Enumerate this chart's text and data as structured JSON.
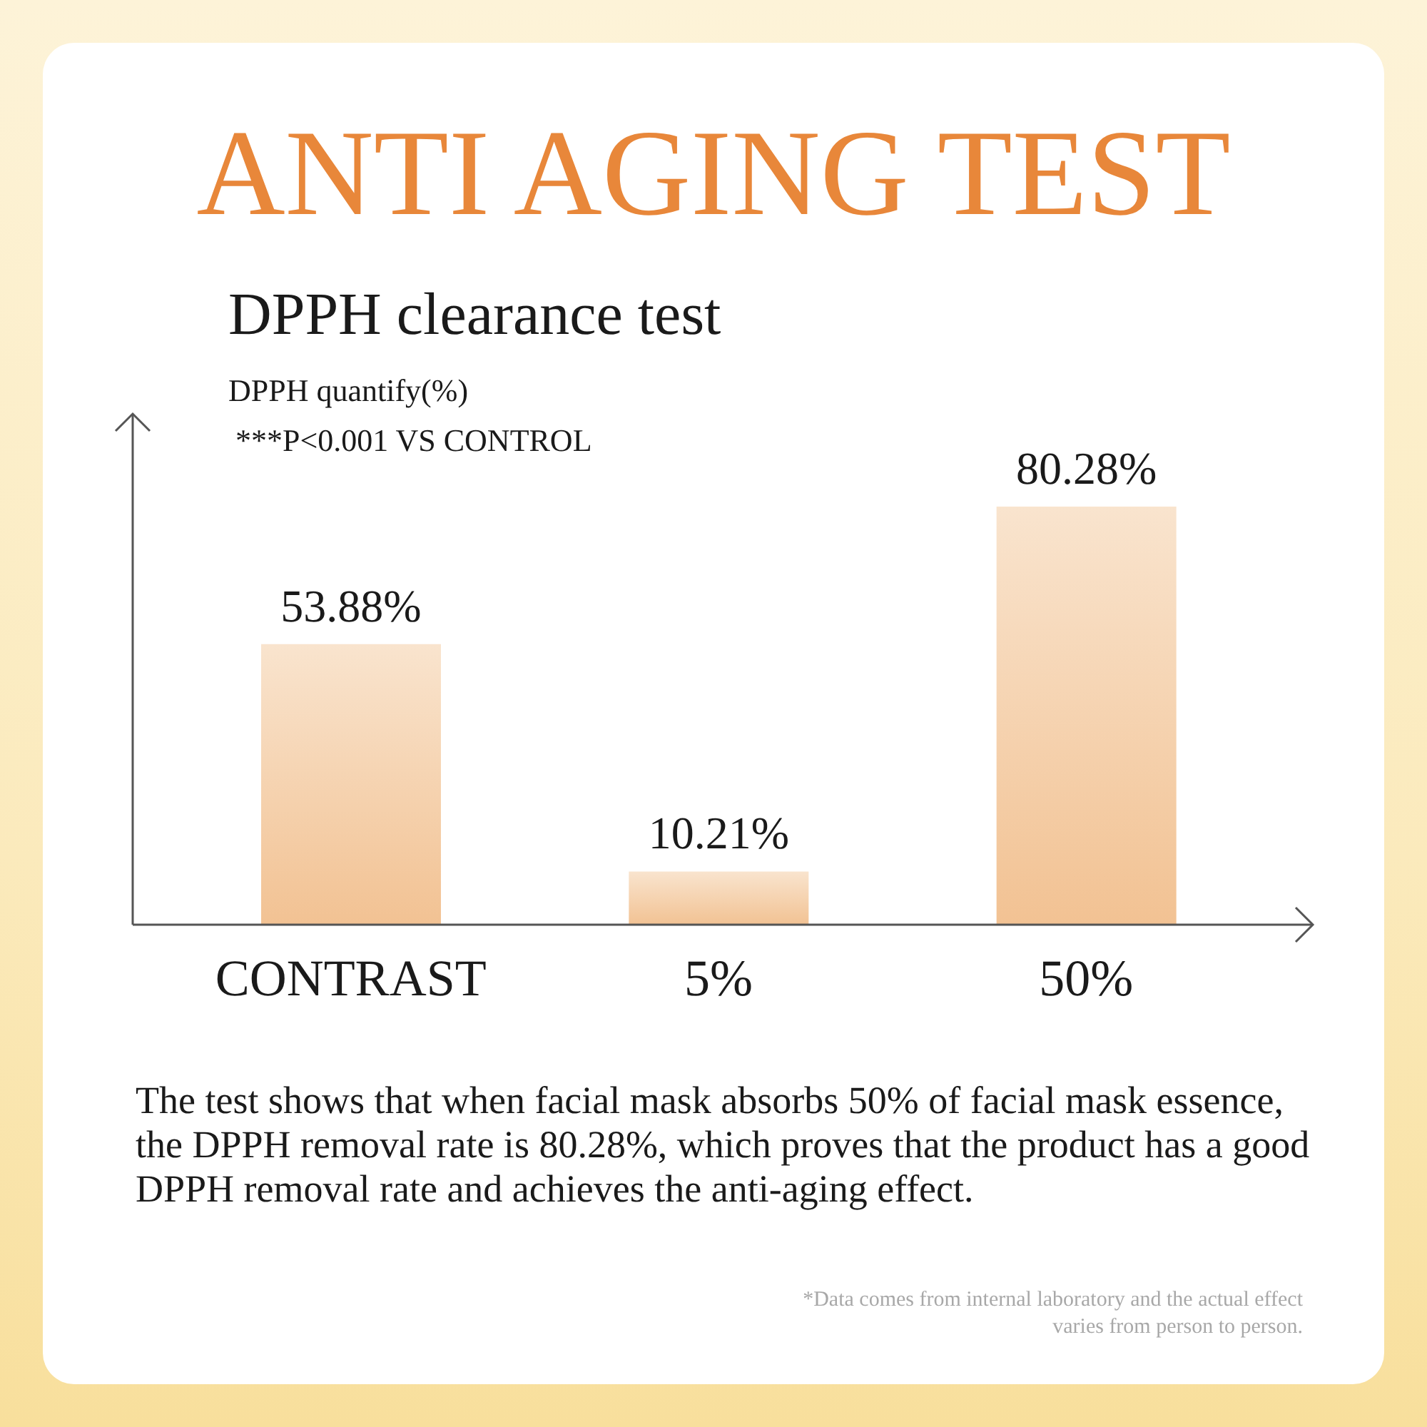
{
  "chart_data": {
    "type": "bar",
    "title": "ANTI AGING TEST",
    "subtitle": "DPPH clearance test",
    "ylabel": "DPPH quantify(%)",
    "categories": [
      "CONTRAST",
      "5%",
      "50%"
    ],
    "values": [
      53.88,
      10.21,
      80.28
    ],
    "value_labels": [
      "53.88%",
      "10.21%",
      "80.28%"
    ],
    "color": "#f2c293",
    "tick_labels": "x",
    "annotations": [
      "***P<0.001 VS CONTROL",
      "The test shows that when facial mask absorbs 50% of facial mask essence, the DPPH removal rate is 80.28%, which proves that the product has a good DPPH removal rate and achieves the anti-aging effect.",
      "*Data comes from internal laboratory and the actual effect varies from person to person."
    ]
  }
}
